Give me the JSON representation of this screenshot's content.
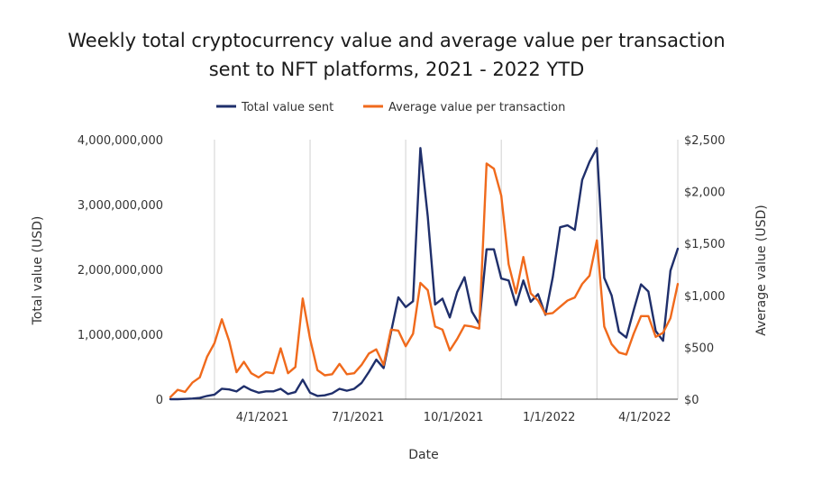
{
  "chart_data": {
    "type": "line",
    "title_line1": "Weekly total cryptocurrency value and average value per transaction",
    "title_line2": "sent to NFT platforms, 2021 - 2022 YTD",
    "xlabel": "Date",
    "ylabel_left": "Total value (USD)",
    "ylabel_right": "Average value (USD)",
    "x_tick_labels": [
      "4/1/2021",
      "7/1/2021",
      "10/1/2021",
      "1/1/2022",
      "4/1/2022"
    ],
    "x_tick_weeks": [
      12.5,
      25.5,
      38.5,
      51.5,
      64.5
    ],
    "y_left_ticks": [
      {
        "value": 0,
        "label": "0"
      },
      {
        "value": 1000000000,
        "label": "1,000,000,000"
      },
      {
        "value": 2000000000,
        "label": "2,000,000,000"
      },
      {
        "value": 3000000000,
        "label": "3,000,000,000"
      },
      {
        "value": 4000000000,
        "label": "4,000,000,000"
      }
    ],
    "y_right_ticks": [
      {
        "value": 0,
        "label": "$0"
      },
      {
        "value": 500,
        "label": "$500"
      },
      {
        "value": 1000,
        "label": "$1,000"
      },
      {
        "value": 1500,
        "label": "$1,500"
      },
      {
        "value": 2000,
        "label": "$2,000"
      },
      {
        "value": 2500,
        "label": "$2,500"
      }
    ],
    "y_left_range": [
      0,
      4000000000
    ],
    "y_right_range": [
      0,
      2500
    ],
    "x_range_weeks": [
      0,
      69
    ],
    "legend_position": "top-center",
    "grid": "vertical",
    "series": [
      {
        "name": "Total value sent",
        "axis": "left",
        "color": "#1f2f6b",
        "x": [
          0,
          1,
          2,
          3,
          4,
          5,
          6,
          7,
          8,
          9,
          10,
          11,
          12,
          13,
          14,
          15,
          16,
          17,
          18,
          19,
          20,
          21,
          22,
          23,
          24,
          25,
          26,
          27,
          28,
          29,
          30,
          31,
          32,
          33,
          34,
          35,
          36,
          37,
          38,
          39,
          40,
          41,
          42,
          43,
          44,
          45,
          46,
          47,
          48,
          49,
          50,
          51,
          52,
          53,
          54,
          55,
          56,
          57,
          58,
          59,
          60,
          61,
          62,
          63,
          64,
          65,
          66,
          67,
          68,
          69
        ],
        "values": [
          0,
          0,
          5000000,
          10000000,
          20000000,
          50000000,
          70000000,
          160000000,
          150000000,
          120000000,
          200000000,
          140000000,
          100000000,
          120000000,
          120000000,
          160000000,
          80000000,
          110000000,
          300000000,
          100000000,
          50000000,
          60000000,
          90000000,
          160000000,
          130000000,
          160000000,
          250000000,
          420000000,
          610000000,
          480000000,
          1030000000,
          1570000000,
          1420000000,
          1510000000,
          3870000000,
          2820000000,
          1460000000,
          1550000000,
          1260000000,
          1650000000,
          1880000000,
          1350000000,
          1160000000,
          2310000000,
          2310000000,
          1860000000,
          1830000000,
          1450000000,
          1830000000,
          1500000000,
          1620000000,
          1300000000,
          1880000000,
          2650000000,
          2680000000,
          2610000000,
          3380000000,
          3660000000,
          3870000000,
          1870000000,
          1600000000,
          1040000000,
          950000000,
          1370000000,
          1770000000,
          1660000000,
          1050000000,
          900000000,
          1980000000,
          2320000000
        ]
      },
      {
        "name": "Average value per transaction",
        "axis": "right",
        "color": "#f06a1c",
        "x": [
          0,
          1,
          2,
          3,
          4,
          5,
          6,
          7,
          8,
          9,
          10,
          11,
          12,
          13,
          14,
          15,
          16,
          17,
          18,
          19,
          20,
          21,
          22,
          23,
          24,
          25,
          26,
          27,
          28,
          29,
          30,
          31,
          32,
          33,
          34,
          35,
          36,
          37,
          38,
          39,
          40,
          41,
          42,
          43,
          44,
          45,
          46,
          47,
          48,
          49,
          50,
          51,
          52,
          53,
          54,
          55,
          56,
          57,
          58,
          59,
          60,
          61,
          62,
          63,
          64,
          65,
          66,
          67,
          68,
          69
        ],
        "values": [
          20,
          90,
          70,
          160,
          210,
          410,
          540,
          770,
          560,
          260,
          360,
          250,
          210,
          260,
          250,
          490,
          250,
          310,
          970,
          580,
          280,
          230,
          240,
          340,
          240,
          250,
          330,
          440,
          480,
          330,
          670,
          660,
          510,
          630,
          1120,
          1050,
          700,
          670,
          470,
          580,
          710,
          700,
          680,
          2270,
          2220,
          1960,
          1300,
          1020,
          1370,
          1020,
          950,
          820,
          830,
          890,
          950,
          980,
          1110,
          1190,
          1530,
          700,
          530,
          450,
          430,
          630,
          800,
          800,
          600,
          640,
          780,
          1110
        ]
      }
    ]
  }
}
